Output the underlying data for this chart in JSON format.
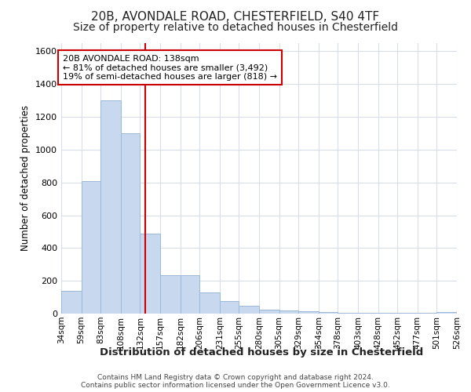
{
  "title1": "20B, AVONDALE ROAD, CHESTERFIELD, S40 4TF",
  "title2": "Size of property relative to detached houses in Chesterfield",
  "xlabel": "Distribution of detached houses by size in Chesterfield",
  "ylabel": "Number of detached properties",
  "bar_edges": [
    34,
    59,
    83,
    108,
    132,
    157,
    182,
    206,
    231,
    255,
    280,
    305,
    329,
    354,
    378,
    403,
    428,
    452,
    477,
    501,
    526
  ],
  "bar_heights": [
    140,
    810,
    1300,
    1100,
    490,
    235,
    235,
    130,
    75,
    50,
    25,
    20,
    15,
    10,
    5,
    5,
    5,
    5,
    5,
    10
  ],
  "bar_color": "#c8d8ee",
  "bar_edge_color": "#9ab8d8",
  "vline_x": 138,
  "vline_color": "#cc0000",
  "annotation_text": "20B AVONDALE ROAD: 138sqm\n← 81% of detached houses are smaller (3,492)\n19% of semi-detached houses are larger (818) →",
  "annotation_box_color": "#cc0000",
  "ylim": [
    0,
    1650
  ],
  "yticks": [
    0,
    200,
    400,
    600,
    800,
    1000,
    1200,
    1400,
    1600
  ],
  "footer": "Contains HM Land Registry data © Crown copyright and database right 2024.\nContains public sector information licensed under the Open Government Licence v3.0.",
  "bg_color": "#ffffff",
  "plot_bg_color": "#ffffff",
  "grid_color": "#d8dde8",
  "title1_fontsize": 11,
  "title2_fontsize": 10,
  "tick_labels": [
    "34sqm",
    "59sqm",
    "83sqm",
    "108sqm",
    "132sqm",
    "157sqm",
    "182sqm",
    "206sqm",
    "231sqm",
    "255sqm",
    "280sqm",
    "305sqm",
    "329sqm",
    "354sqm",
    "378sqm",
    "403sqm",
    "428sqm",
    "452sqm",
    "477sqm",
    "501sqm",
    "526sqm"
  ]
}
